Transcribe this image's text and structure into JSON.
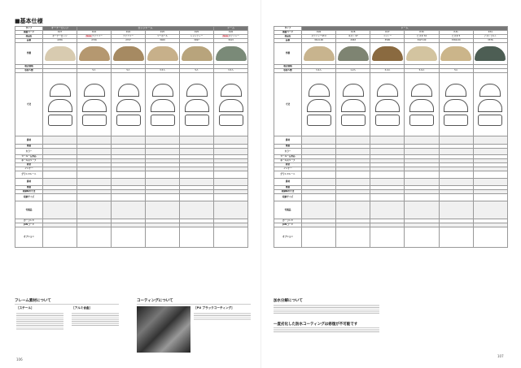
{
  "left_page": {
    "section_title": "■基本仕様",
    "groups": [
      {
        "label": "オーナーロッジ",
        "span": 1
      },
      {
        "label": "ロッジドーム",
        "span": 4
      },
      {
        "label": "ドーム",
        "span": 1
      }
    ],
    "row_labels": [
      "タイプ",
      "掲載ページ",
      "商品名",
      "品番",
      "外観",
      "税込価格",
      "収容人数",
      "寸法",
      "素材",
      "重量",
      "カラー",
      "ツールーム対応",
      "ポールスリーブ",
      "前室",
      "インナー",
      "グランドシート",
      "素材",
      "重量",
      "収納時の寸法",
      "収納サイズ",
      "付属品",
      "ガーランド",
      "JANコード",
      "オプション"
    ],
    "columns": [
      {
        "page": "P.27",
        "name": "オーナーロッジ",
        "new": false,
        "code": "2256",
        "capacity": "",
        "color": "#d8cbb0"
      },
      {
        "page": "P.22",
        "name": "ファミリー",
        "new": true,
        "code": "2726",
        "capacity": "5人",
        "color": "#b59870"
      },
      {
        "page": "P.24",
        "name": "ファミリー",
        "new": false,
        "code": "2727",
        "capacity": "5人",
        "color": "#a68a62"
      },
      {
        "page": "P.25",
        "name": "ツーポール",
        "new": false,
        "code": "3400",
        "capacity": "3-5人",
        "color": "#c7b08a"
      },
      {
        "page": "P.25",
        "name": "シャンティー",
        "new": false,
        "code": "3497",
        "capacity": "5人",
        "color": "#b8a47c"
      },
      {
        "page": "P.26",
        "name": "ステイシー",
        "new": true,
        "code": "3413",
        "capacity": "3-5人",
        "color": "#7a8a78"
      }
    ],
    "frame_title": "フレーム素材について",
    "steel_title": "［スチール］",
    "alu_title": "［アルミ合金］",
    "coating_title": "コーティングについて",
    "pu_title": "［PU ブラックコーティング］",
    "page_number": "106"
  },
  "right_page": {
    "groups": [
      {
        "label": "ドーム",
        "span": 6
      }
    ],
    "row_labels": [
      "タイプ",
      "掲載ページ",
      "商品名",
      "品番",
      "外観",
      "税込価格",
      "収容人数",
      "寸法",
      "素材",
      "重量",
      "カラー",
      "ツールーム対応",
      "ポールスリーブ",
      "前室",
      "インナー",
      "グランドシート",
      "素材",
      "重量",
      "収納時の寸法",
      "収納サイズ",
      "付属品",
      "ガーランド",
      "JANコード",
      "オプション"
    ],
    "columns": [
      {
        "page": "P.26",
        "name": "ステイシーST-II",
        "new": false,
        "code": "3614-00",
        "capacity": "3-4人",
        "color": "#c8b48e"
      },
      {
        "page": "P.28",
        "name": "ネスト ST",
        "new": false,
        "code": "2663",
        "capacity": "1-2人",
        "color": "#7e8472"
      },
      {
        "page": "P.27",
        "name": "イントー",
        "new": false,
        "code": "3590",
        "capacity": "3-4人",
        "color": "#8a6a40"
      },
      {
        "page": "P.30",
        "name": "ピスタ 34",
        "new": false,
        "code": "3427-00",
        "capacity": "5-6人",
        "color": "#d3c4a0"
      },
      {
        "page": "P.31",
        "name": "ピスタ 5",
        "new": false,
        "code": "3360-00",
        "capacity": "5人",
        "color": "#cbb58a"
      },
      {
        "page": "P.31",
        "name": "アストラルト",
        "new": false,
        "code": "3376",
        "capacity": "",
        "color": "#4d5e54"
      }
    ],
    "storage_title": "加水分解について",
    "warning_title": "一度劣化した防水コーティングは修復が不可能です",
    "page_number": "107"
  }
}
